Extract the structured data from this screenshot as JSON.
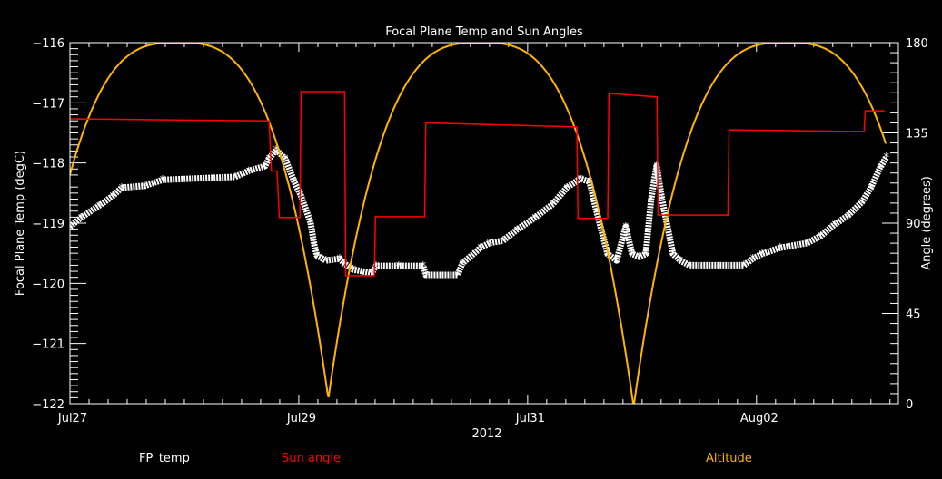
{
  "chart_data": {
    "type": "line",
    "title": "Focal Plane Temp and Sun Angles",
    "xlabel": "2012",
    "ylabel": "Focal Plane Temp (degC)",
    "y2label": "Angle (degrees)",
    "x_units": "days since Jul27 00:00",
    "xlim": [
      0,
      7.24
    ],
    "ylim": [
      -122,
      -116
    ],
    "y2lim": [
      0,
      180
    ],
    "x_ticks": [
      {
        "value": 0,
        "label": "Jul27"
      },
      {
        "value": 2,
        "label": "Jul29"
      },
      {
        "value": 4,
        "label": "Jul31"
      },
      {
        "value": 6,
        "label": "Aug02"
      }
    ],
    "y_ticks": [
      {
        "value": -116,
        "label": "−116"
      },
      {
        "value": -117,
        "label": "−117"
      },
      {
        "value": -118,
        "label": "−118"
      },
      {
        "value": -119,
        "label": "−119"
      },
      {
        "value": -120,
        "label": "−120"
      },
      {
        "value": -121,
        "label": "−121"
      },
      {
        "value": -122,
        "label": "−122"
      }
    ],
    "y2_ticks": [
      {
        "value": 0,
        "label": "0"
      },
      {
        "value": 45,
        "label": "45"
      },
      {
        "value": 90,
        "label": "90"
      },
      {
        "value": 135,
        "label": "135"
      },
      {
        "value": 180,
        "label": "180"
      }
    ],
    "grid": false,
    "legend_placement": "bottom",
    "series": [
      {
        "name": "FP_temp",
        "axis": "left",
        "color": "#FFFFFF",
        "marker": "asterisk",
        "points": [
          [
            0,
            -119.06
          ],
          [
            0.095,
            -118.91
          ],
          [
            0.254,
            -118.71
          ],
          [
            0.373,
            -118.55
          ],
          [
            0.452,
            -118.41
          ],
          [
            0.651,
            -118.38
          ],
          [
            0.81,
            -118.28
          ],
          [
            1.444,
            -118.23
          ],
          [
            1.563,
            -118.13
          ],
          [
            1.706,
            -118.05
          ],
          [
            1.738,
            -117.93
          ],
          [
            1.802,
            -117.78
          ],
          [
            1.881,
            -117.93
          ],
          [
            1.96,
            -118.31
          ],
          [
            2.016,
            -118.53
          ],
          [
            2.103,
            -118.99
          ],
          [
            2.135,
            -119.36
          ],
          [
            2.159,
            -119.54
          ],
          [
            2.238,
            -119.62
          ],
          [
            2.357,
            -119.59
          ],
          [
            2.397,
            -119.67
          ],
          [
            2.476,
            -119.77
          ],
          [
            2.635,
            -119.83
          ],
          [
            2.675,
            -119.71
          ],
          [
            2.873,
            -119.71
          ],
          [
            3.087,
            -119.71
          ],
          [
            3.111,
            -119.86
          ],
          [
            3.389,
            -119.86
          ],
          [
            3.429,
            -119.67
          ],
          [
            3.587,
            -119.41
          ],
          [
            3.667,
            -119.33
          ],
          [
            3.786,
            -119.29
          ],
          [
            3.905,
            -119.11
          ],
          [
            4.063,
            -118.91
          ],
          [
            4.222,
            -118.68
          ],
          [
            4.341,
            -118.41
          ],
          [
            4.46,
            -118.26
          ],
          [
            4.54,
            -118.31
          ],
          [
            4.603,
            -118.81
          ],
          [
            4.698,
            -119.51
          ],
          [
            4.778,
            -119.62
          ],
          [
            4.857,
            -119.06
          ],
          [
            4.913,
            -119.51
          ],
          [
            4.976,
            -119.56
          ],
          [
            5.032,
            -119.51
          ],
          [
            5.079,
            -118.61
          ],
          [
            5.127,
            -118.05
          ],
          [
            5.175,
            -118.61
          ],
          [
            5.27,
            -119.51
          ],
          [
            5.333,
            -119.62
          ],
          [
            5.413,
            -119.7
          ],
          [
            5.889,
            -119.7
          ],
          [
            5.968,
            -119.59
          ],
          [
            6.048,
            -119.51
          ],
          [
            6.206,
            -119.41
          ],
          [
            6.444,
            -119.33
          ],
          [
            6.563,
            -119.21
          ],
          [
            6.683,
            -119.02
          ],
          [
            6.802,
            -118.87
          ],
          [
            6.921,
            -118.65
          ],
          [
            7.0,
            -118.41
          ],
          [
            7.079,
            -118.08
          ],
          [
            7.135,
            -117.9
          ]
        ]
      },
      {
        "name": "Sun angle",
        "axis": "right",
        "color": "#FF0000",
        "points": [
          [
            0,
            142
          ],
          [
            0.85,
            141.5
          ],
          [
            1.74,
            141
          ],
          [
            1.76,
            116
          ],
          [
            1.81,
            116
          ],
          [
            1.83,
            92.8
          ],
          [
            2.01,
            92.8
          ],
          [
            2.02,
            155.6
          ],
          [
            2.4,
            155.6
          ],
          [
            2.41,
            63.8
          ],
          [
            2.66,
            63.8
          ],
          [
            2.67,
            93.2
          ],
          [
            3.1,
            93.2
          ],
          [
            3.11,
            140
          ],
          [
            4.43,
            138
          ],
          [
            4.44,
            92.4
          ],
          [
            4.7,
            92.4
          ],
          [
            4.71,
            154.7
          ],
          [
            5.13,
            153
          ],
          [
            5.14,
            94
          ],
          [
            5.75,
            94
          ],
          [
            5.76,
            136.5
          ],
          [
            6.94,
            135.7
          ],
          [
            6.95,
            146
          ],
          [
            7.12,
            146
          ]
        ]
      },
      {
        "name": "Altitude",
        "axis": "right",
        "color": "#FFB400",
        "shape": "arcs value = 180*(1-|t-peak|^3/half_width^3)",
        "x_range": [
          0,
          7.13
        ],
        "arcs": [
          {
            "peak_day": 0.944,
            "half_width_days": 1.32
          },
          {
            "peak_day": 3.587,
            "half_width_days": 1.335
          },
          {
            "peak_day": 6.26,
            "half_width_days": 1.33
          }
        ],
        "peak_value": 180
      }
    ]
  }
}
